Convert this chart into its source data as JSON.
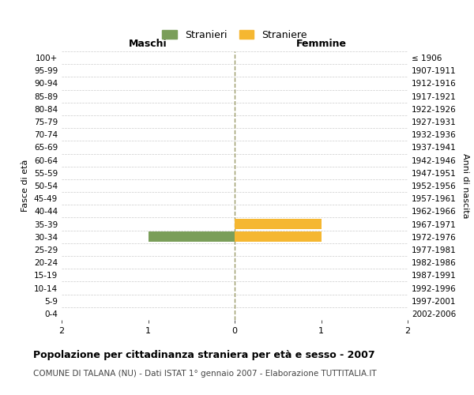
{
  "age_groups": [
    "100+",
    "95-99",
    "90-94",
    "85-89",
    "80-84",
    "75-79",
    "70-74",
    "65-69",
    "60-64",
    "55-59",
    "50-54",
    "45-49",
    "40-44",
    "35-39",
    "30-34",
    "25-29",
    "20-24",
    "15-19",
    "10-14",
    "5-9",
    "0-4"
  ],
  "birth_years": [
    "≤ 1906",
    "1907-1911",
    "1912-1916",
    "1917-1921",
    "1922-1926",
    "1927-1931",
    "1932-1936",
    "1937-1941",
    "1942-1946",
    "1947-1951",
    "1952-1956",
    "1957-1961",
    "1962-1966",
    "1967-1971",
    "1972-1976",
    "1977-1981",
    "1982-1986",
    "1987-1991",
    "1992-1996",
    "1997-2001",
    "2002-2006"
  ],
  "males": [
    0,
    0,
    0,
    0,
    0,
    0,
    0,
    0,
    0,
    0,
    0,
    0,
    0,
    0,
    1,
    0,
    0,
    0,
    0,
    0,
    0
  ],
  "females": [
    0,
    0,
    0,
    0,
    0,
    0,
    0,
    0,
    0,
    0,
    0,
    0,
    0,
    1,
    1,
    0,
    0,
    0,
    0,
    0,
    0
  ],
  "xlim": [
    -2,
    2
  ],
  "male_color": "#7A9E59",
  "female_color": "#F5B731",
  "grid_color": "#cccccc",
  "center_line_color": "#999966",
  "title": "Popolazione per cittadinanza straniera per età e sesso - 2007",
  "subtitle": "COMUNE DI TALANA (NU) - Dati ISTAT 1° gennaio 2007 - Elaborazione TUTTITALIA.IT",
  "ylabel_left": "Fasce di età",
  "ylabel_right": "Anni di nascita",
  "header_left": "Maschi",
  "header_right": "Femmine",
  "legend_stranieri": "Stranieri",
  "legend_straniere": "Straniere",
  "bar_height": 0.8,
  "background_color": "#ffffff"
}
